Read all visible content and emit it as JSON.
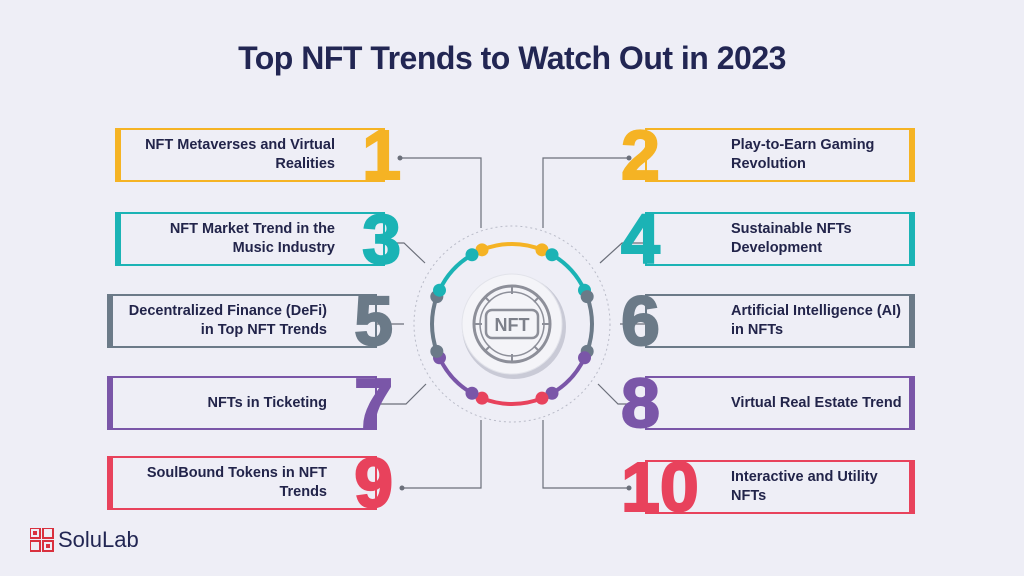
{
  "title": "Top NFT Trends to Watch Out in 2023",
  "center_label": "NFT",
  "brand": "SoluLab",
  "trends": [
    {
      "num": "1",
      "label": "NFT Metaverses and Virtual Realities",
      "color": "#f5b324"
    },
    {
      "num": "2",
      "label": "Play-to-Earn Gaming Revolution",
      "color": "#f5b324"
    },
    {
      "num": "3",
      "label": "NFT Market Trend in the Music Industry",
      "color": "#1bb3b5"
    },
    {
      "num": "4",
      "label": "Sustainable NFTs Development",
      "color": "#1bb3b5"
    },
    {
      "num": "5",
      "label": "Decentralized Finance (DeFi) in Top NFT Trends",
      "color": "#6b7a88"
    },
    {
      "num": "6",
      "label": "Artificial Intelligence (AI) in NFTs",
      "color": "#6b7a88"
    },
    {
      "num": "7",
      "label": "NFTs in Ticketing",
      "color": "#7a56a8"
    },
    {
      "num": "8",
      "label": "Virtual Real Estate Trend",
      "color": "#7a56a8"
    },
    {
      "num": "9",
      "label": "SoulBound Tokens in NFT Trends",
      "color": "#e8425c"
    },
    {
      "num": "10",
      "label": "Interactive and Utility NFTs",
      "color": "#e8425c"
    }
  ],
  "colors": {
    "background": "#eeeef6",
    "title": "#222653",
    "connector": "#6b6f7a",
    "brand_red": "#d9303e"
  }
}
